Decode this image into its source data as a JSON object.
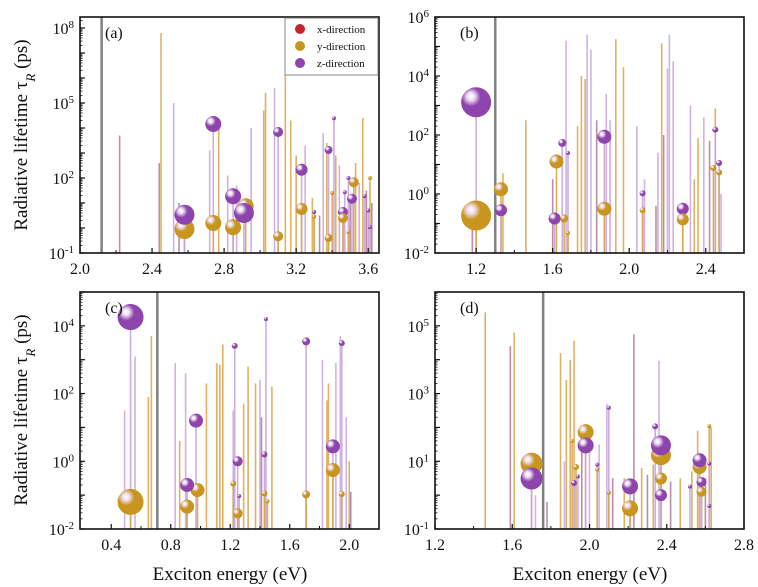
{
  "colors": {
    "x": "#c0262b",
    "y": "#c8951e",
    "z": "#8d44ad",
    "stem_x": "#b27a98",
    "stem_y": "#d8a648",
    "stem_z": "#c9a5dd",
    "gap_line": "#808080"
  },
  "legend": {
    "items": [
      {
        "dir": "x",
        "label": "x-direction"
      },
      {
        "dir": "y",
        "label": "y-direction"
      },
      {
        "dir": "z",
        "label": "z-direction"
      }
    ]
  },
  "ylabel": {
    "main": "Radiative lifetime  τ",
    "sub": "R",
    "unit": " (ps)"
  },
  "xlabel": "Exciton energy (eV)",
  "chart_data": [
    {
      "type": "scatter",
      "panel": "(a)",
      "xlim": [
        2.0,
        3.66
      ],
      "ylog_range": [
        -1,
        8.44
      ],
      "xticks": [
        "2.0",
        "2.4",
        "2.8",
        "3.2",
        "3.6"
      ],
      "yticks": [
        -1,
        2,
        5,
        8
      ],
      "gap_energy": 2.12,
      "stems": [
        [
          2.22,
          3.7,
          "x"
        ],
        [
          2.44,
          2.6,
          "x"
        ],
        [
          2.45,
          7.8,
          "y"
        ],
        [
          2.52,
          5.0,
          "z"
        ],
        [
          2.55,
          1.0,
          "x"
        ],
        [
          2.72,
          3.1,
          "z"
        ],
        [
          2.77,
          4.1,
          "y"
        ],
        [
          2.82,
          2.1,
          "z"
        ],
        [
          2.87,
          1.7,
          "z"
        ],
        [
          2.95,
          4.0,
          "z"
        ],
        [
          3.02,
          4.7,
          "y"
        ],
        [
          3.03,
          5.4,
          "y"
        ],
        [
          3.08,
          5.6,
          "z"
        ],
        [
          3.14,
          6.5,
          "y"
        ],
        [
          3.17,
          4.3,
          "y"
        ],
        [
          3.2,
          2.9,
          "y"
        ],
        [
          3.25,
          3.3,
          "z"
        ],
        [
          3.29,
          1.2,
          "y"
        ],
        [
          3.33,
          0.5,
          "x"
        ],
        [
          3.35,
          3.8,
          "z"
        ],
        [
          3.37,
          3.4,
          "y"
        ],
        [
          3.42,
          2.9,
          "y"
        ],
        [
          3.44,
          2.5,
          "z"
        ],
        [
          3.5,
          1.3,
          "x"
        ],
        [
          3.53,
          2.6,
          "y"
        ],
        [
          3.55,
          1.8,
          "z"
        ],
        [
          3.57,
          4.4,
          "y"
        ],
        [
          3.59,
          1.5,
          "x"
        ],
        [
          3.62,
          1.0,
          "x"
        ]
      ],
      "spheres": [
        [
          2.58,
          -0.04,
          "y",
          10
        ],
        [
          2.58,
          0.53,
          "z",
          10
        ],
        [
          2.74,
          4.16,
          "z",
          8
        ],
        [
          2.74,
          0.2,
          "y",
          8
        ],
        [
          2.85,
          0.03,
          "y",
          8
        ],
        [
          2.85,
          1.27,
          "z",
          8
        ],
        [
          2.92,
          0.87,
          "y",
          8
        ],
        [
          2.91,
          0.6,
          "z",
          10
        ],
        [
          3.1,
          3.84,
          "z",
          5
        ],
        [
          3.1,
          -0.33,
          "y",
          5
        ],
        [
          3.23,
          2.33,
          "z",
          6
        ],
        [
          3.23,
          0.76,
          "y",
          6
        ],
        [
          3.41,
          4.39,
          "z",
          2
        ],
        [
          3.38,
          3.12,
          "z",
          4
        ],
        [
          3.38,
          -0.4,
          "y",
          4
        ],
        [
          3.4,
          1.4,
          "y",
          2
        ],
        [
          3.46,
          0.64,
          "z",
          5
        ],
        [
          3.46,
          0.4,
          "y",
          5
        ],
        [
          3.52,
          1.83,
          "y",
          5
        ],
        [
          3.51,
          1.17,
          "z",
          5
        ],
        [
          3.49,
          2.0,
          "z",
          2
        ],
        [
          3.49,
          -0.17,
          "y",
          2
        ],
        [
          3.47,
          1.43,
          "z",
          2
        ],
        [
          3.3,
          0.64,
          "z",
          2
        ],
        [
          3.3,
          0.45,
          "y",
          2
        ],
        [
          3.61,
          2.0,
          "y",
          2
        ],
        [
          3.61,
          0.03,
          "z",
          2
        ],
        [
          3.58,
          1.27,
          "z",
          2
        ],
        [
          3.6,
          0.7,
          "z",
          2
        ]
      ]
    },
    {
      "type": "scatter",
      "panel": "(b)",
      "xlim": [
        0.985,
        2.6
      ],
      "ylog_range": [
        -2,
        6
      ],
      "xticks": [
        "1.2",
        "1.6",
        "2.0",
        "2.4"
      ],
      "yticks": [
        -2,
        0,
        2,
        4,
        6
      ],
      "gap_energy": 1.3,
      "stems": [
        [
          1.18,
          -1.0,
          "x"
        ],
        [
          1.34,
          0.7,
          "y"
        ],
        [
          1.46,
          2.5,
          "y"
        ],
        [
          1.6,
          0.5,
          "x"
        ],
        [
          1.67,
          5.2,
          "z"
        ],
        [
          1.73,
          2.3,
          "y"
        ],
        [
          1.75,
          4.0,
          "y"
        ],
        [
          1.77,
          3.9,
          "y"
        ],
        [
          1.78,
          5.4,
          "z"
        ],
        [
          1.8,
          4.9,
          "z"
        ],
        [
          1.83,
          2.5,
          "x"
        ],
        [
          1.88,
          3.4,
          "z"
        ],
        [
          1.9,
          2.5,
          "z"
        ],
        [
          1.93,
          5.25,
          "y"
        ],
        [
          1.97,
          4.3,
          "y"
        ],
        [
          2.04,
          2.3,
          "z"
        ],
        [
          2.08,
          0.5,
          "z"
        ],
        [
          2.14,
          -0.4,
          "x"
        ],
        [
          2.15,
          1.4,
          "z"
        ],
        [
          2.17,
          5.1,
          "y"
        ],
        [
          2.18,
          2.0,
          "x"
        ],
        [
          2.2,
          4.25,
          "z"
        ],
        [
          2.21,
          5.4,
          "z"
        ],
        [
          2.23,
          4.5,
          "z"
        ],
        [
          2.32,
          3.0,
          "z"
        ],
        [
          2.34,
          0.5,
          "y"
        ],
        [
          2.36,
          1.9,
          "y"
        ],
        [
          2.39,
          2.6,
          "z"
        ],
        [
          2.42,
          1.8,
          "x"
        ],
        [
          2.45,
          2.9,
          "y"
        ],
        [
          2.48,
          0.0,
          "z"
        ]
      ],
      "spheres": [
        [
          1.2,
          3.11,
          "z",
          15
        ],
        [
          1.2,
          -0.73,
          "y",
          15
        ],
        [
          1.33,
          0.16,
          "y",
          7
        ],
        [
          1.33,
          -0.55,
          "z",
          6
        ],
        [
          1.62,
          1.1,
          "y",
          7
        ],
        [
          1.61,
          -0.83,
          "z",
          6
        ],
        [
          1.65,
          1.73,
          "z",
          4
        ],
        [
          1.66,
          -0.83,
          "y",
          4
        ],
        [
          1.68,
          1.39,
          "z",
          2
        ],
        [
          1.68,
          -1.32,
          "y",
          2
        ],
        [
          1.87,
          1.94,
          "z",
          7
        ],
        [
          1.87,
          -0.5,
          "y",
          7
        ],
        [
          2.07,
          0.02,
          "z",
          3
        ],
        [
          2.07,
          -0.55,
          "y",
          3
        ],
        [
          2.28,
          -0.5,
          "z",
          6
        ],
        [
          2.28,
          -0.86,
          "y",
          6
        ],
        [
          2.45,
          2.18,
          "z",
          3
        ],
        [
          2.44,
          0.88,
          "y",
          3
        ],
        [
          2.47,
          1.05,
          "z",
          3
        ],
        [
          2.47,
          0.73,
          "y",
          3
        ]
      ]
    },
    {
      "type": "scatter",
      "panel": "(c)",
      "xlim": [
        0.19,
        2.2
      ],
      "ylog_range": [
        -2,
        5
      ],
      "xticks": [
        "0.4",
        "0.8",
        "1.2",
        "1.6",
        "2.0"
      ],
      "yticks": [
        -2,
        0,
        2,
        4
      ],
      "gap_energy": 0.71,
      "stems": [
        [
          0.49,
          1.5,
          "z"
        ],
        [
          0.56,
          3.1,
          "z"
        ],
        [
          0.65,
          1.9,
          "y"
        ],
        [
          0.67,
          3.7,
          "y"
        ],
        [
          0.83,
          2.9,
          "z"
        ],
        [
          0.86,
          0.6,
          "y"
        ],
        [
          0.9,
          2.6,
          "z"
        ],
        [
          1.04,
          2.3,
          "y"
        ],
        [
          1.11,
          2.9,
          "y"
        ],
        [
          1.13,
          2.85,
          "y"
        ],
        [
          1.15,
          3.45,
          "y"
        ],
        [
          1.22,
          1.5,
          "z"
        ],
        [
          1.29,
          1.7,
          "y"
        ],
        [
          1.32,
          2.8,
          "y"
        ],
        [
          1.37,
          2.3,
          "y"
        ],
        [
          1.4,
          2.4,
          "z"
        ],
        [
          1.41,
          1.3,
          "x"
        ],
        [
          1.48,
          2.2,
          "y"
        ],
        [
          1.82,
          3.0,
          "z"
        ],
        [
          1.85,
          1.8,
          "y"
        ],
        [
          1.86,
          2.3,
          "y"
        ],
        [
          1.91,
          2.9,
          "z"
        ],
        [
          1.94,
          3.7,
          "z"
        ],
        [
          1.98,
          1.3,
          "z"
        ],
        [
          2.0,
          0.0,
          "y"
        ],
        [
          2.01,
          -0.9,
          "x"
        ]
      ],
      "spheres": [
        [
          0.53,
          4.26,
          "z",
          13
        ],
        [
          0.53,
          -1.2,
          "y",
          13
        ],
        [
          0.97,
          1.2,
          "z",
          7
        ],
        [
          0.98,
          -0.85,
          "y",
          7
        ],
        [
          0.91,
          -0.7,
          "z",
          7
        ],
        [
          0.91,
          -1.34,
          "y",
          7
        ],
        [
          1.23,
          3.41,
          "z",
          3
        ],
        [
          1.22,
          -0.66,
          "y",
          3
        ],
        [
          1.25,
          0.0,
          "z",
          5
        ],
        [
          1.25,
          -1.54,
          "y",
          5
        ],
        [
          1.26,
          -1.03,
          "z",
          2
        ],
        [
          1.44,
          4.2,
          "z",
          2
        ],
        [
          1.43,
          0.2,
          "z",
          3
        ],
        [
          1.43,
          -0.95,
          "y",
          3
        ],
        [
          1.45,
          -1.18,
          "y",
          2
        ],
        [
          1.71,
          3.54,
          "z",
          4
        ],
        [
          1.71,
          -0.98,
          "y",
          4
        ],
        [
          1.89,
          0.44,
          "z",
          7
        ],
        [
          1.89,
          -0.26,
          "y",
          7
        ],
        [
          1.95,
          3.49,
          "z",
          3
        ],
        [
          1.95,
          -0.97,
          "y",
          3
        ]
      ]
    },
    {
      "type": "scatter",
      "panel": "(d)",
      "xlim": [
        1.2,
        2.8
      ],
      "ylog_range": [
        -1,
        6
      ],
      "xticks": [
        "1.2",
        "1.6",
        "2.0",
        "2.4",
        "2.8"
      ],
      "yticks": [
        -1,
        1,
        3,
        5
      ],
      "gap_energy": 1.76,
      "stems": [
        [
          1.46,
          5.4,
          "y"
        ],
        [
          1.59,
          4.4,
          "x"
        ],
        [
          1.61,
          4.8,
          "y"
        ],
        [
          1.72,
          0.0,
          "z"
        ],
        [
          1.78,
          -0.2,
          "x"
        ],
        [
          1.85,
          4.2,
          "y"
        ],
        [
          1.87,
          1.0,
          "z"
        ],
        [
          1.88,
          3.4,
          "y"
        ],
        [
          1.9,
          4.0,
          "y"
        ],
        [
          1.92,
          4.56,
          "y"
        ],
        [
          1.96,
          2.0,
          "x"
        ],
        [
          2.0,
          1.8,
          "z"
        ],
        [
          2.05,
          1.5,
          "z"
        ],
        [
          2.09,
          2.7,
          "z"
        ],
        [
          2.12,
          0.5,
          "x"
        ],
        [
          2.18,
          0.5,
          "y"
        ],
        [
          2.23,
          4.75,
          "x"
        ],
        [
          2.27,
          0.8,
          "y"
        ],
        [
          2.3,
          0.6,
          "x"
        ],
        [
          2.33,
          0.9,
          "y"
        ],
        [
          2.36,
          3.97,
          "z"
        ],
        [
          2.42,
          0.4,
          "x"
        ],
        [
          2.47,
          0.5,
          "y"
        ],
        [
          2.53,
          0.7,
          "y"
        ],
        [
          2.56,
          1.9,
          "y"
        ],
        [
          2.6,
          0.5,
          "x"
        ],
        [
          2.63,
          2.0,
          "y"
        ]
      ],
      "spheres": [
        [
          1.7,
          0.93,
          "y",
          11
        ],
        [
          1.7,
          0.49,
          "z",
          11
        ],
        [
          1.98,
          1.86,
          "y",
          8
        ],
        [
          1.98,
          1.47,
          "z",
          8
        ],
        [
          2.21,
          0.26,
          "z",
          8
        ],
        [
          2.21,
          -0.39,
          "y",
          8
        ],
        [
          2.37,
          1.18,
          "y",
          10
        ],
        [
          2.37,
          1.47,
          "z",
          10
        ],
        [
          2.37,
          0.49,
          "y",
          6
        ],
        [
          2.37,
          0.0,
          "z",
          6
        ],
        [
          2.34,
          2.03,
          "z",
          3
        ],
        [
          2.57,
          0.83,
          "y",
          7
        ],
        [
          2.57,
          1.03,
          "z",
          7
        ],
        [
          2.58,
          0.1,
          "y",
          5
        ],
        [
          2.58,
          0.39,
          "z",
          5
        ],
        [
          2.62,
          2.04,
          "y",
          2
        ],
        [
          2.62,
          0.93,
          "z",
          2
        ],
        [
          2.62,
          -0.32,
          "z",
          2
        ],
        [
          2.52,
          0.25,
          "z",
          2
        ],
        [
          2.1,
          2.58,
          "z",
          2
        ],
        [
          2.1,
          0.07,
          "y",
          2
        ],
        [
          1.92,
          0.36,
          "z",
          3
        ],
        [
          1.93,
          0.83,
          "y",
          3
        ],
        [
          1.94,
          0.55,
          "z",
          2
        ],
        [
          1.91,
          1.6,
          "y",
          2
        ],
        [
          2.04,
          0.9,
          "z",
          2
        ],
        [
          2.04,
          0.75,
          "y",
          2
        ]
      ]
    }
  ]
}
